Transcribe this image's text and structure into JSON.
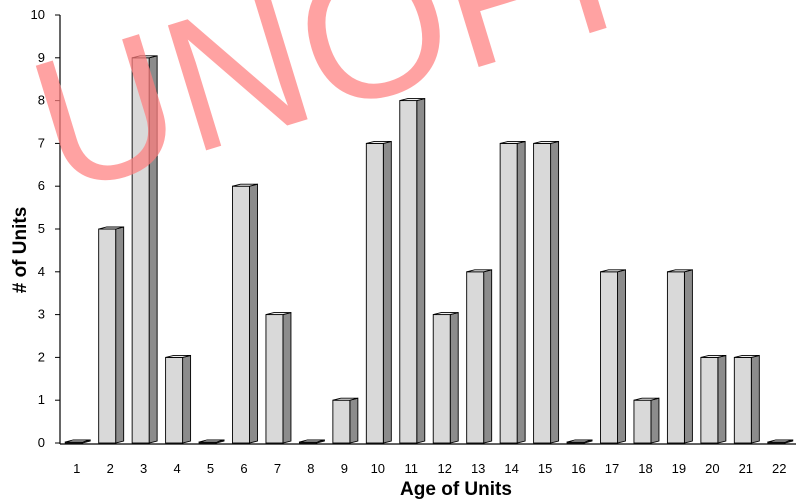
{
  "chart_data": {
    "type": "bar",
    "title": "",
    "xlabel": "Age of Units",
    "ylabel": "# of Units",
    "categories": [
      "1",
      "2",
      "3",
      "4",
      "5",
      "6",
      "7",
      "8",
      "9",
      "10",
      "11",
      "12",
      "13",
      "14",
      "15",
      "16",
      "17",
      "18",
      "19",
      "20",
      "21",
      "22"
    ],
    "values": [
      0,
      5,
      9,
      2,
      0,
      6,
      3,
      0,
      1,
      7,
      8,
      3,
      4,
      7,
      7,
      0,
      4,
      1,
      4,
      2,
      2,
      0
    ],
    "ylim": [
      0,
      10
    ],
    "yticks": [
      "0",
      "1",
      "2",
      "3",
      "4",
      "5",
      "6",
      "7",
      "8",
      "9",
      "10"
    ],
    "grid": false,
    "legend": "none",
    "style": "3d-bars"
  },
  "watermark": "UNOFFICIAL",
  "colors": {
    "bar_front": "#d9d9d9",
    "bar_side": "#8c8c8c",
    "bar_top": "#efefef",
    "bar_outline": "#000000",
    "watermark": "#ff7f7f",
    "axis": "#000000"
  }
}
